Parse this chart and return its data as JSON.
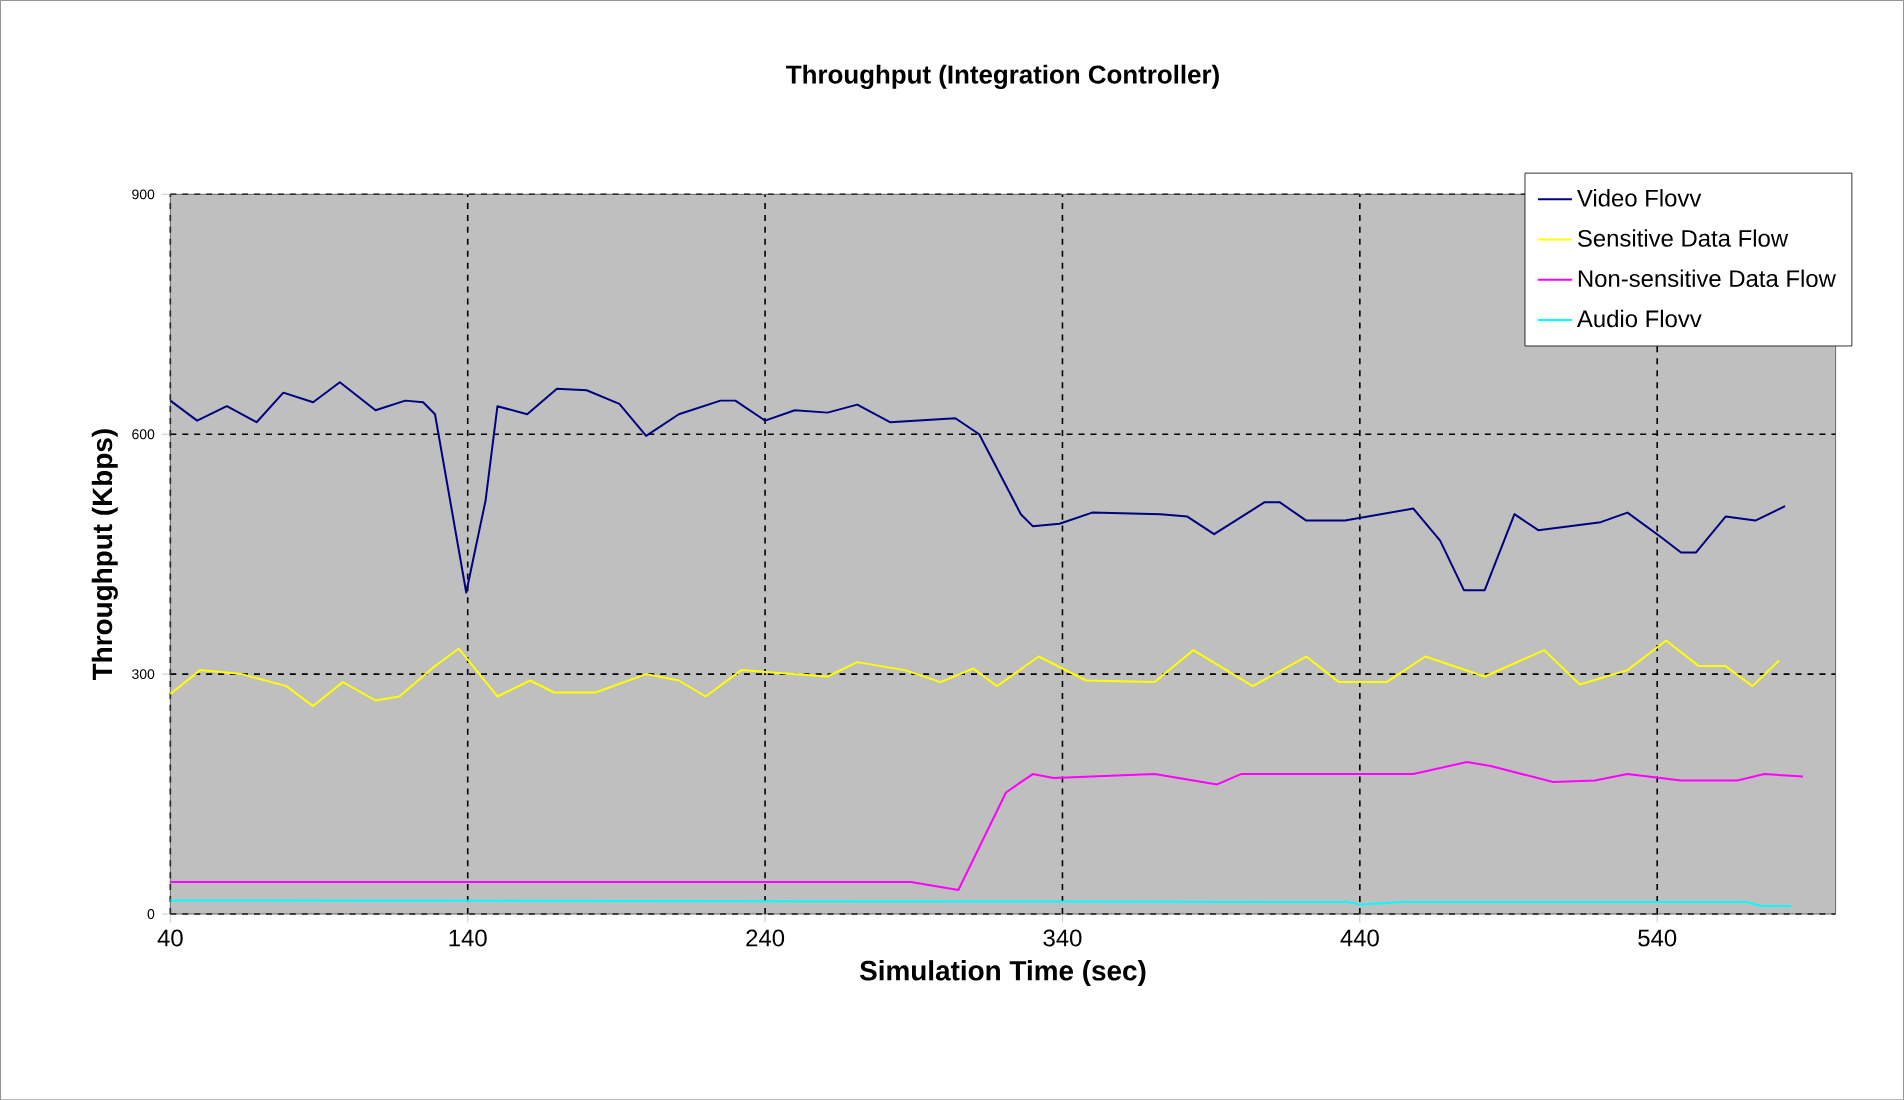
{
  "chart_data": {
    "type": "line",
    "title": "Throughput (Integration Controller)",
    "xlabel": "Simulation Time (sec)",
    "ylabel": "Throughput (Kbps)",
    "xlim": [
      40,
      600
    ],
    "xticks": [
      40,
      140,
      240,
      340,
      440,
      540
    ],
    "ylim": [
      0,
      900
    ],
    "yticks": [
      0,
      300,
      600,
      900
    ],
    "grid": true,
    "legend": "top right",
    "series": [
      {
        "name": "Video Flovv",
        "color": "#000080",
        "x": [
          40,
          49,
          59,
          69,
          78,
          88,
          97,
          109,
          119,
          125,
          129,
          139.5,
          146,
          150,
          160,
          170,
          180,
          191,
          200,
          211,
          225,
          230,
          240,
          250,
          261,
          271,
          282,
          304,
          312,
          326,
          330,
          339,
          350,
          373,
          382,
          391,
          408,
          413,
          422,
          435,
          458,
          467,
          475,
          482,
          492,
          500,
          521,
          530,
          541,
          548,
          553,
          563,
          573,
          583
        ],
        "values": [
          642,
          617,
          635,
          615,
          652,
          640,
          665,
          630,
          642,
          640,
          625,
          402,
          517,
          635,
          625,
          657,
          655,
          638,
          598,
          625,
          642,
          642,
          617,
          630,
          627,
          637,
          615,
          620,
          600,
          500,
          485,
          488,
          502,
          500,
          497,
          475,
          515,
          515,
          492,
          492,
          507,
          467,
          405,
          405,
          500,
          480,
          490,
          502,
          472,
          452,
          452,
          497,
          492,
          510
        ]
      },
      {
        "name": "Sensitive Data Flow",
        "color": "#ffff00",
        "x": [
          40,
          50,
          64,
          79,
          88,
          98,
          109,
          117,
          129,
          137,
          150,
          161,
          169,
          183,
          200,
          211,
          220,
          232,
          261,
          271,
          287,
          299,
          310,
          318,
          332,
          348,
          371,
          384,
          404,
          422,
          433,
          449,
          462,
          482,
          502,
          514,
          530,
          543,
          554,
          563,
          572,
          581
        ],
        "values": [
          275,
          305,
          300,
          285,
          260,
          290,
          267,
          272,
          310,
          332,
          272,
          292,
          277,
          277,
          300,
          292,
          272,
          305,
          297,
          315,
          305,
          290,
          307,
          285,
          322,
          292,
          290,
          330,
          285,
          322,
          290,
          290,
          322,
          297,
          330,
          287,
          305,
          342,
          310,
          310,
          285,
          317
        ]
      },
      {
        "name": "Non-sensitive Data Flow",
        "color": "#ff00ff",
        "x": [
          40,
          289,
          305,
          321,
          330,
          337,
          371,
          392,
          400,
          458,
          476,
          484,
          505,
          519,
          530,
          548,
          567,
          576,
          589
        ],
        "values": [
          40,
          40,
          30,
          152,
          175,
          170,
          175,
          162,
          175,
          175,
          190,
          185,
          165,
          167,
          175,
          167,
          167,
          175,
          172
        ]
      },
      {
        "name": "Audio Flovv",
        "color": "#00ffff",
        "x": [
          40,
          436,
          440,
          455,
          570,
          575,
          585
        ],
        "values": [
          17,
          15,
          12,
          15,
          15,
          10,
          10
        ]
      }
    ]
  }
}
